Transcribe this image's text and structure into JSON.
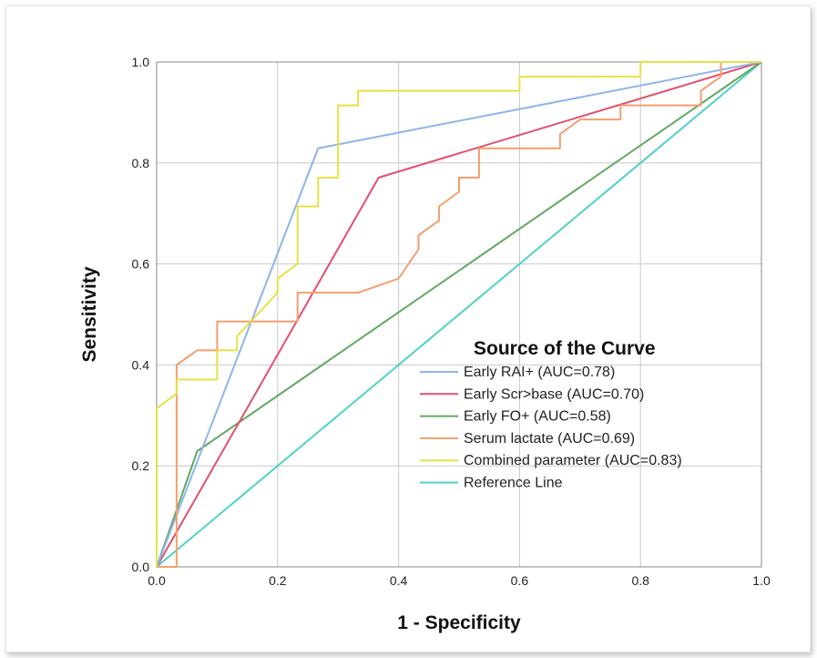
{
  "chart_data": {
    "type": "line",
    "title": "",
    "xlabel": "1 - Specificity",
    "ylabel": "Sensitivity",
    "xlim": [
      0,
      1
    ],
    "ylim": [
      0,
      1
    ],
    "x_ticks": [
      "0.0",
      "0.2",
      "0.4",
      "0.6",
      "0.8",
      "1.0"
    ],
    "y_ticks": [
      "0.0",
      "0.2",
      "0.4",
      "0.6",
      "0.8",
      "1.0"
    ],
    "grid": true,
    "legend": {
      "title": "Source of the Curve",
      "placement": "lower-right"
    },
    "series": [
      {
        "name": "Early RAI+ (AUC=0.78)",
        "color": "#8fb4ec",
        "points": [
          [
            0,
            0
          ],
          [
            0.267,
            0.829
          ],
          [
            1,
            1
          ]
        ]
      },
      {
        "name": "Early Scr>base (AUC=0.70)",
        "color": "#e0506e",
        "points": [
          [
            0,
            0
          ],
          [
            0.367,
            0.771
          ],
          [
            1,
            1
          ]
        ]
      },
      {
        "name": "Early FO+ (AUC=0.58)",
        "color": "#62a862",
        "points": [
          [
            0,
            0
          ],
          [
            0.067,
            0.229
          ],
          [
            1,
            1
          ]
        ]
      },
      {
        "name": "Serum lactate (AUC=0.69)",
        "color": "#f59e6e",
        "points": [
          [
            0,
            0
          ],
          [
            0.033,
            0
          ],
          [
            0.033,
            0.4
          ],
          [
            0.067,
            0.429
          ],
          [
            0.1,
            0.429
          ],
          [
            0.1,
            0.486
          ],
          [
            0.233,
            0.486
          ],
          [
            0.233,
            0.543
          ],
          [
            0.333,
            0.543
          ],
          [
            0.4,
            0.571
          ],
          [
            0.433,
            0.629
          ],
          [
            0.433,
            0.657
          ],
          [
            0.467,
            0.686
          ],
          [
            0.467,
            0.714
          ],
          [
            0.5,
            0.743
          ],
          [
            0.5,
            0.771
          ],
          [
            0.533,
            0.771
          ],
          [
            0.533,
            0.829
          ],
          [
            0.667,
            0.829
          ],
          [
            0.667,
            0.857
          ],
          [
            0.7,
            0.886
          ],
          [
            0.767,
            0.886
          ],
          [
            0.767,
            0.914
          ],
          [
            0.9,
            0.914
          ],
          [
            0.9,
            0.943
          ],
          [
            0.933,
            0.971
          ],
          [
            0.933,
            1.0
          ],
          [
            1,
            1
          ]
        ]
      },
      {
        "name": "Combined parameter (AUC=0.83)",
        "color": "#e8e046",
        "points": [
          [
            0,
            0
          ],
          [
            0,
            0.314
          ],
          [
            0.033,
            0.343
          ],
          [
            0.033,
            0.371
          ],
          [
            0.1,
            0.371
          ],
          [
            0.1,
            0.429
          ],
          [
            0.133,
            0.429
          ],
          [
            0.133,
            0.457
          ],
          [
            0.2,
            0.543
          ],
          [
            0.2,
            0.571
          ],
          [
            0.233,
            0.6
          ],
          [
            0.233,
            0.714
          ],
          [
            0.267,
            0.714
          ],
          [
            0.267,
            0.771
          ],
          [
            0.3,
            0.771
          ],
          [
            0.3,
            0.914
          ],
          [
            0.333,
            0.914
          ],
          [
            0.333,
            0.943
          ],
          [
            0.6,
            0.943
          ],
          [
            0.6,
            0.971
          ],
          [
            0.8,
            0.971
          ],
          [
            0.8,
            1.0
          ],
          [
            1,
            1
          ]
        ]
      },
      {
        "name": "Reference Line",
        "color": "#4fd1c8",
        "points": [
          [
            0,
            0
          ],
          [
            1,
            1
          ]
        ]
      }
    ]
  }
}
